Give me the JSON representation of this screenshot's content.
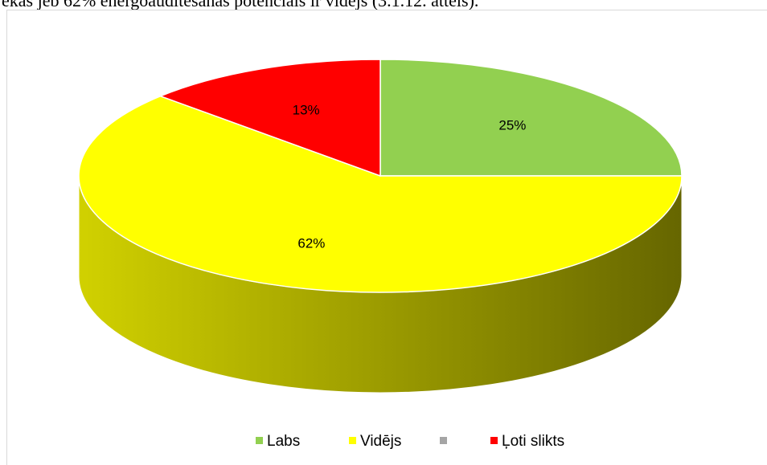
{
  "intro_text": "ēkas jeb 62% energoauditēšanas potenciāls ir vidējs (3.1.12. attēls).",
  "chart_data": {
    "type": "pie",
    "categories": [
      "Labs",
      "Vidējs",
      null,
      "Ļoti slikts"
    ],
    "values": [
      25,
      62,
      0,
      13
    ],
    "value_labels": [
      "25%",
      "62%",
      null,
      "13%"
    ],
    "colors": [
      "#92d050",
      "#ffff00",
      "#a5a5a5",
      "#ff0000"
    ],
    "legend": "bottom"
  }
}
